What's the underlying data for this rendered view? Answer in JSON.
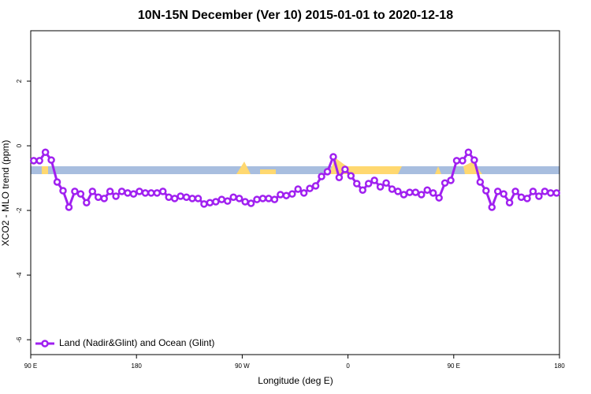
{
  "chart_data": {
    "type": "line",
    "title": "10N-15N December (Ver 10)   2015-01-01 to 2020-12-18",
    "x_label": "Longitude (deg E)",
    "y_label": "XCO2 - MLO trend (ppm)",
    "xlim": [
      90,
      540
    ],
    "xticks": [
      {
        "value": 90,
        "label": "90 E"
      },
      180,
      {
        "value": 270,
        "label": "90 W"
      },
      {
        "value": 360,
        "label": "0"
      },
      {
        "value": 450,
        "label": "90 E"
      },
      {
        "value": 540,
        "label": "180"
      }
    ],
    "ylim": [
      -6.46,
      3.56
    ],
    "yticks": [
      -6,
      -4,
      -2,
      0,
      2
    ],
    "legend": "bottom-left",
    "x": [
      92.5,
      97.5,
      102.5,
      107.5,
      112.5,
      117.5,
      122.5,
      127.5,
      132.5,
      137.5,
      142.5,
      147.5,
      152.5,
      157.5,
      162.5,
      167.5,
      172.5,
      177.5,
      182.5,
      187.5,
      192.5,
      197.5,
      202.5,
      207.5,
      212.5,
      217.5,
      222.5,
      227.5,
      232.5,
      237.5,
      242.5,
      247.5,
      252.5,
      257.5,
      262.5,
      267.5,
      272.5,
      277.5,
      282.5,
      287.5,
      292.5,
      297.5,
      302.5,
      307.5,
      312.5,
      317.5,
      322.5,
      327.5,
      332.5,
      337.5,
      342.5,
      347.5,
      352.5,
      357.5,
      362.5,
      367.5,
      372.5,
      377.5,
      382.5,
      387.5,
      392.5,
      397.5,
      402.5,
      407.5,
      412.5,
      417.5,
      422.5,
      427.5,
      432.5,
      437.5,
      442.5,
      447.5,
      452.5,
      457.5,
      462.5,
      467.5,
      472.5,
      477.5,
      482.5,
      487.5,
      492.5,
      497.5,
      502.5,
      507.5,
      512.5,
      517.5,
      522.5,
      527.5,
      532.5,
      537.5
    ],
    "series": [
      {
        "name": "Land (Nadir&Glint) and Ocean (Glint)",
        "color": "#a020f0",
        "values": [
          -0.46,
          -0.46,
          -0.2,
          -0.44,
          -1.12,
          -1.39,
          -1.9,
          -1.41,
          -1.49,
          -1.76,
          -1.41,
          -1.59,
          -1.63,
          -1.41,
          -1.56,
          -1.41,
          -1.46,
          -1.49,
          -1.41,
          -1.46,
          -1.46,
          -1.46,
          -1.41,
          -1.59,
          -1.63,
          -1.56,
          -1.59,
          -1.63,
          -1.63,
          -1.8,
          -1.76,
          -1.73,
          -1.66,
          -1.71,
          -1.59,
          -1.63,
          -1.73,
          -1.78,
          -1.66,
          -1.63,
          -1.63,
          -1.66,
          -1.51,
          -1.54,
          -1.49,
          -1.34,
          -1.46,
          -1.32,
          -1.24,
          -0.95,
          -0.8,
          -0.34,
          -0.98,
          -0.73,
          -0.93,
          -1.17,
          -1.37,
          -1.17,
          -1.07,
          -1.27,
          -1.15,
          -1.34,
          -1.41,
          -1.51,
          -1.44,
          -1.44,
          -1.51,
          -1.37,
          -1.46,
          -1.61,
          -1.15,
          -1.07,
          -0.46,
          -0.46,
          -0.2,
          -0.44,
          -1.12,
          -1.39,
          -1.9,
          -1.41,
          -1.49,
          -1.76,
          -1.41,
          -1.59,
          -1.63,
          -1.41,
          -1.56,
          -1.41,
          -1.46,
          -1.46
        ]
      }
    ]
  }
}
